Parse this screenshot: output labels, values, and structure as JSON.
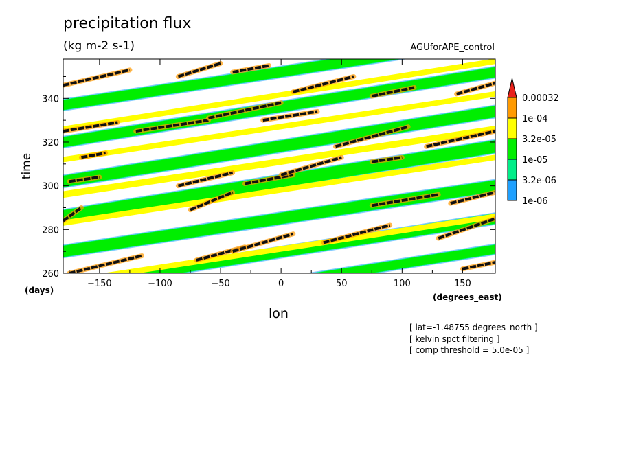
{
  "chart_data": {
    "type": "heatmap",
    "title": "precipitation flux",
    "units": "(kg m-2 s-1)",
    "dataset": "AGUforAPE_control",
    "xlabel": "lon",
    "xunit": "(degrees_east)",
    "ylabel": "time",
    "yunit": "(days)",
    "xlim": [
      -180,
      177
    ],
    "ylim": [
      260,
      358
    ],
    "xticks": [
      -150,
      -100,
      -50,
      0,
      50,
      100,
      150
    ],
    "yticks": [
      260,
      280,
      300,
      320,
      340
    ],
    "xtick_labels": [
      "−150",
      "−100",
      "−50",
      "0",
      "50",
      "100",
      "150"
    ],
    "ytick_labels": [
      "260",
      "280",
      "300",
      "320",
      "340"
    ],
    "legend": {
      "placement": "right",
      "levels": [
        {
          "label": "0.00032",
          "color": "#e8221b"
        },
        {
          "label": "1e-04",
          "color": "#ff9a00"
        },
        {
          "label": "3.2e-05",
          "color": "#ffff00"
        },
        {
          "label": "1e-05",
          "color": "#00ee00"
        },
        {
          "label": "3.2e-06",
          "color": "#00ee88"
        },
        {
          "label": "1e-06",
          "color": "#1ea0ff"
        }
      ]
    },
    "bands": [
      {
        "x0": -180,
        "y0": 286,
        "x1": 177,
        "y1": 318,
        "width": 5.5,
        "level": "green"
      },
      {
        "x0": -180,
        "y0": 270,
        "x1": 177,
        "y1": 300,
        "width": 5,
        "level": "green"
      },
      {
        "x0": -180,
        "y0": 302,
        "x1": 177,
        "y1": 334,
        "width": 5,
        "level": "green"
      },
      {
        "x0": -180,
        "y0": 320,
        "x1": 177,
        "y1": 352,
        "width": 4.5,
        "level": "green"
      },
      {
        "x0": -180,
        "y0": 337,
        "x1": 177,
        "y1": 367,
        "width": 4.5,
        "level": "green"
      },
      {
        "x0": -180,
        "y0": 254,
        "x1": 177,
        "y1": 285,
        "width": 4.5,
        "level": "green"
      },
      {
        "x0": -180,
        "y0": 240,
        "x1": 177,
        "y1": 271,
        "width": 4,
        "level": "green"
      },
      {
        "x0": -180,
        "y0": 296,
        "x1": 177,
        "y1": 326,
        "width": 3,
        "level": "yellow"
      },
      {
        "x0": -180,
        "y0": 283,
        "x1": 177,
        "y1": 313,
        "width": 2.5,
        "level": "yellow"
      },
      {
        "x0": -180,
        "y0": 312,
        "x1": 177,
        "y1": 342,
        "width": 2.5,
        "level": "yellow"
      },
      {
        "x0": -180,
        "y0": 326,
        "x1": 177,
        "y1": 357,
        "width": 2.5,
        "level": "yellow"
      },
      {
        "x0": -180,
        "y0": 256,
        "x1": 177,
        "y1": 286,
        "width": 2.5,
        "level": "yellow"
      }
    ],
    "segments": [
      {
        "x0": -180,
        "y0": 346,
        "x1": -125,
        "y1": 353
      },
      {
        "x0": -85,
        "y0": 350,
        "x1": -50,
        "y1": 356
      },
      {
        "x0": -40,
        "y0": 352,
        "x1": -10,
        "y1": 355
      },
      {
        "x0": 10,
        "y0": 343,
        "x1": 60,
        "y1": 350
      },
      {
        "x0": 75,
        "y0": 341,
        "x1": 110,
        "y1": 345
      },
      {
        "x0": 145,
        "y0": 342,
        "x1": 177,
        "y1": 347
      },
      {
        "x0": -180,
        "y0": 325,
        "x1": -135,
        "y1": 329
      },
      {
        "x0": -120,
        "y0": 325,
        "x1": -60,
        "y1": 330
      },
      {
        "x0": -60,
        "y0": 331,
        "x1": 0,
        "y1": 338
      },
      {
        "x0": -15,
        "y0": 330,
        "x1": 30,
        "y1": 334
      },
      {
        "x0": 45,
        "y0": 318,
        "x1": 105,
        "y1": 327
      },
      {
        "x0": 120,
        "y0": 318,
        "x1": 177,
        "y1": 325
      },
      {
        "x0": -165,
        "y0": 313,
        "x1": -145,
        "y1": 315
      },
      {
        "x0": -85,
        "y0": 300,
        "x1": -40,
        "y1": 306
      },
      {
        "x0": -30,
        "y0": 301,
        "x1": 10,
        "y1": 305
      },
      {
        "x0": 0,
        "y0": 305,
        "x1": 50,
        "y1": 313
      },
      {
        "x0": 75,
        "y0": 311,
        "x1": 100,
        "y1": 313
      },
      {
        "x0": -175,
        "y0": 302,
        "x1": -150,
        "y1": 304
      },
      {
        "x0": -75,
        "y0": 289,
        "x1": -40,
        "y1": 297
      },
      {
        "x0": 75,
        "y0": 291,
        "x1": 130,
        "y1": 296
      },
      {
        "x0": 140,
        "y0": 292,
        "x1": 177,
        "y1": 297
      },
      {
        "x0": -180,
        "y0": 284,
        "x1": -165,
        "y1": 290
      },
      {
        "x0": -175,
        "y0": 260,
        "x1": -115,
        "y1": 268
      },
      {
        "x0": -70,
        "y0": 266,
        "x1": -30,
        "y1": 272
      },
      {
        "x0": -40,
        "y0": 270,
        "x1": 10,
        "y1": 278
      },
      {
        "x0": 35,
        "y0": 274,
        "x1": 90,
        "y1": 282
      },
      {
        "x0": 130,
        "y0": 276,
        "x1": 177,
        "y1": 285
      },
      {
        "x0": 150,
        "y0": 262,
        "x1": 177,
        "y1": 265
      }
    ]
  },
  "notes": [
    "[ lat=-1.48755 degrees_north ]",
    "[ kelvin spct filtering ]",
    "[ comp threshold = 5.0e-05 ]"
  ]
}
